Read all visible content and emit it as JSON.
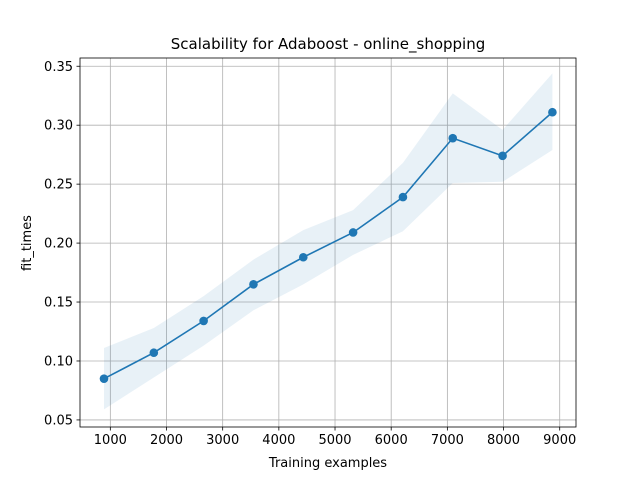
{
  "chart_data": {
    "type": "line",
    "title": "Scalability for Adaboost - online_shopping",
    "xlabel": "Training examples",
    "ylabel": "fit_times",
    "xlim": [
      460,
      9290
    ],
    "ylim": [
      0.044,
      0.357
    ],
    "x_ticks": [
      1000,
      2000,
      3000,
      4000,
      5000,
      6000,
      7000,
      8000,
      9000
    ],
    "y_ticks": [
      0.05,
      0.1,
      0.15,
      0.2,
      0.25,
      0.3,
      0.35
    ],
    "x_tick_labels": [
      "1000",
      "2000",
      "3000",
      "4000",
      "5000",
      "6000",
      "7000",
      "8000",
      "9000"
    ],
    "y_tick_labels": [
      "0.05",
      "0.10",
      "0.15",
      "0.20",
      "0.25",
      "0.30",
      "0.35"
    ],
    "grid": true,
    "colors": {
      "line": "#1f77b4",
      "band": "#1f77b4",
      "grid": "#b0b0b0",
      "axes": "#000000"
    },
    "series": [
      {
        "x": [
          887,
          1774,
          2661,
          3548,
          4435,
          5322,
          6209,
          7096,
          7983,
          8870
        ],
        "y": [
          0.085,
          0.107,
          0.134,
          0.165,
          0.188,
          0.209,
          0.239,
          0.289,
          0.274,
          0.311
        ],
        "upper": [
          0.111,
          0.128,
          0.155,
          0.186,
          0.211,
          0.228,
          0.268,
          0.327,
          0.296,
          0.344
        ],
        "lower": [
          0.059,
          0.086,
          0.113,
          0.143,
          0.165,
          0.19,
          0.21,
          0.251,
          0.252,
          0.279
        ]
      }
    ]
  }
}
